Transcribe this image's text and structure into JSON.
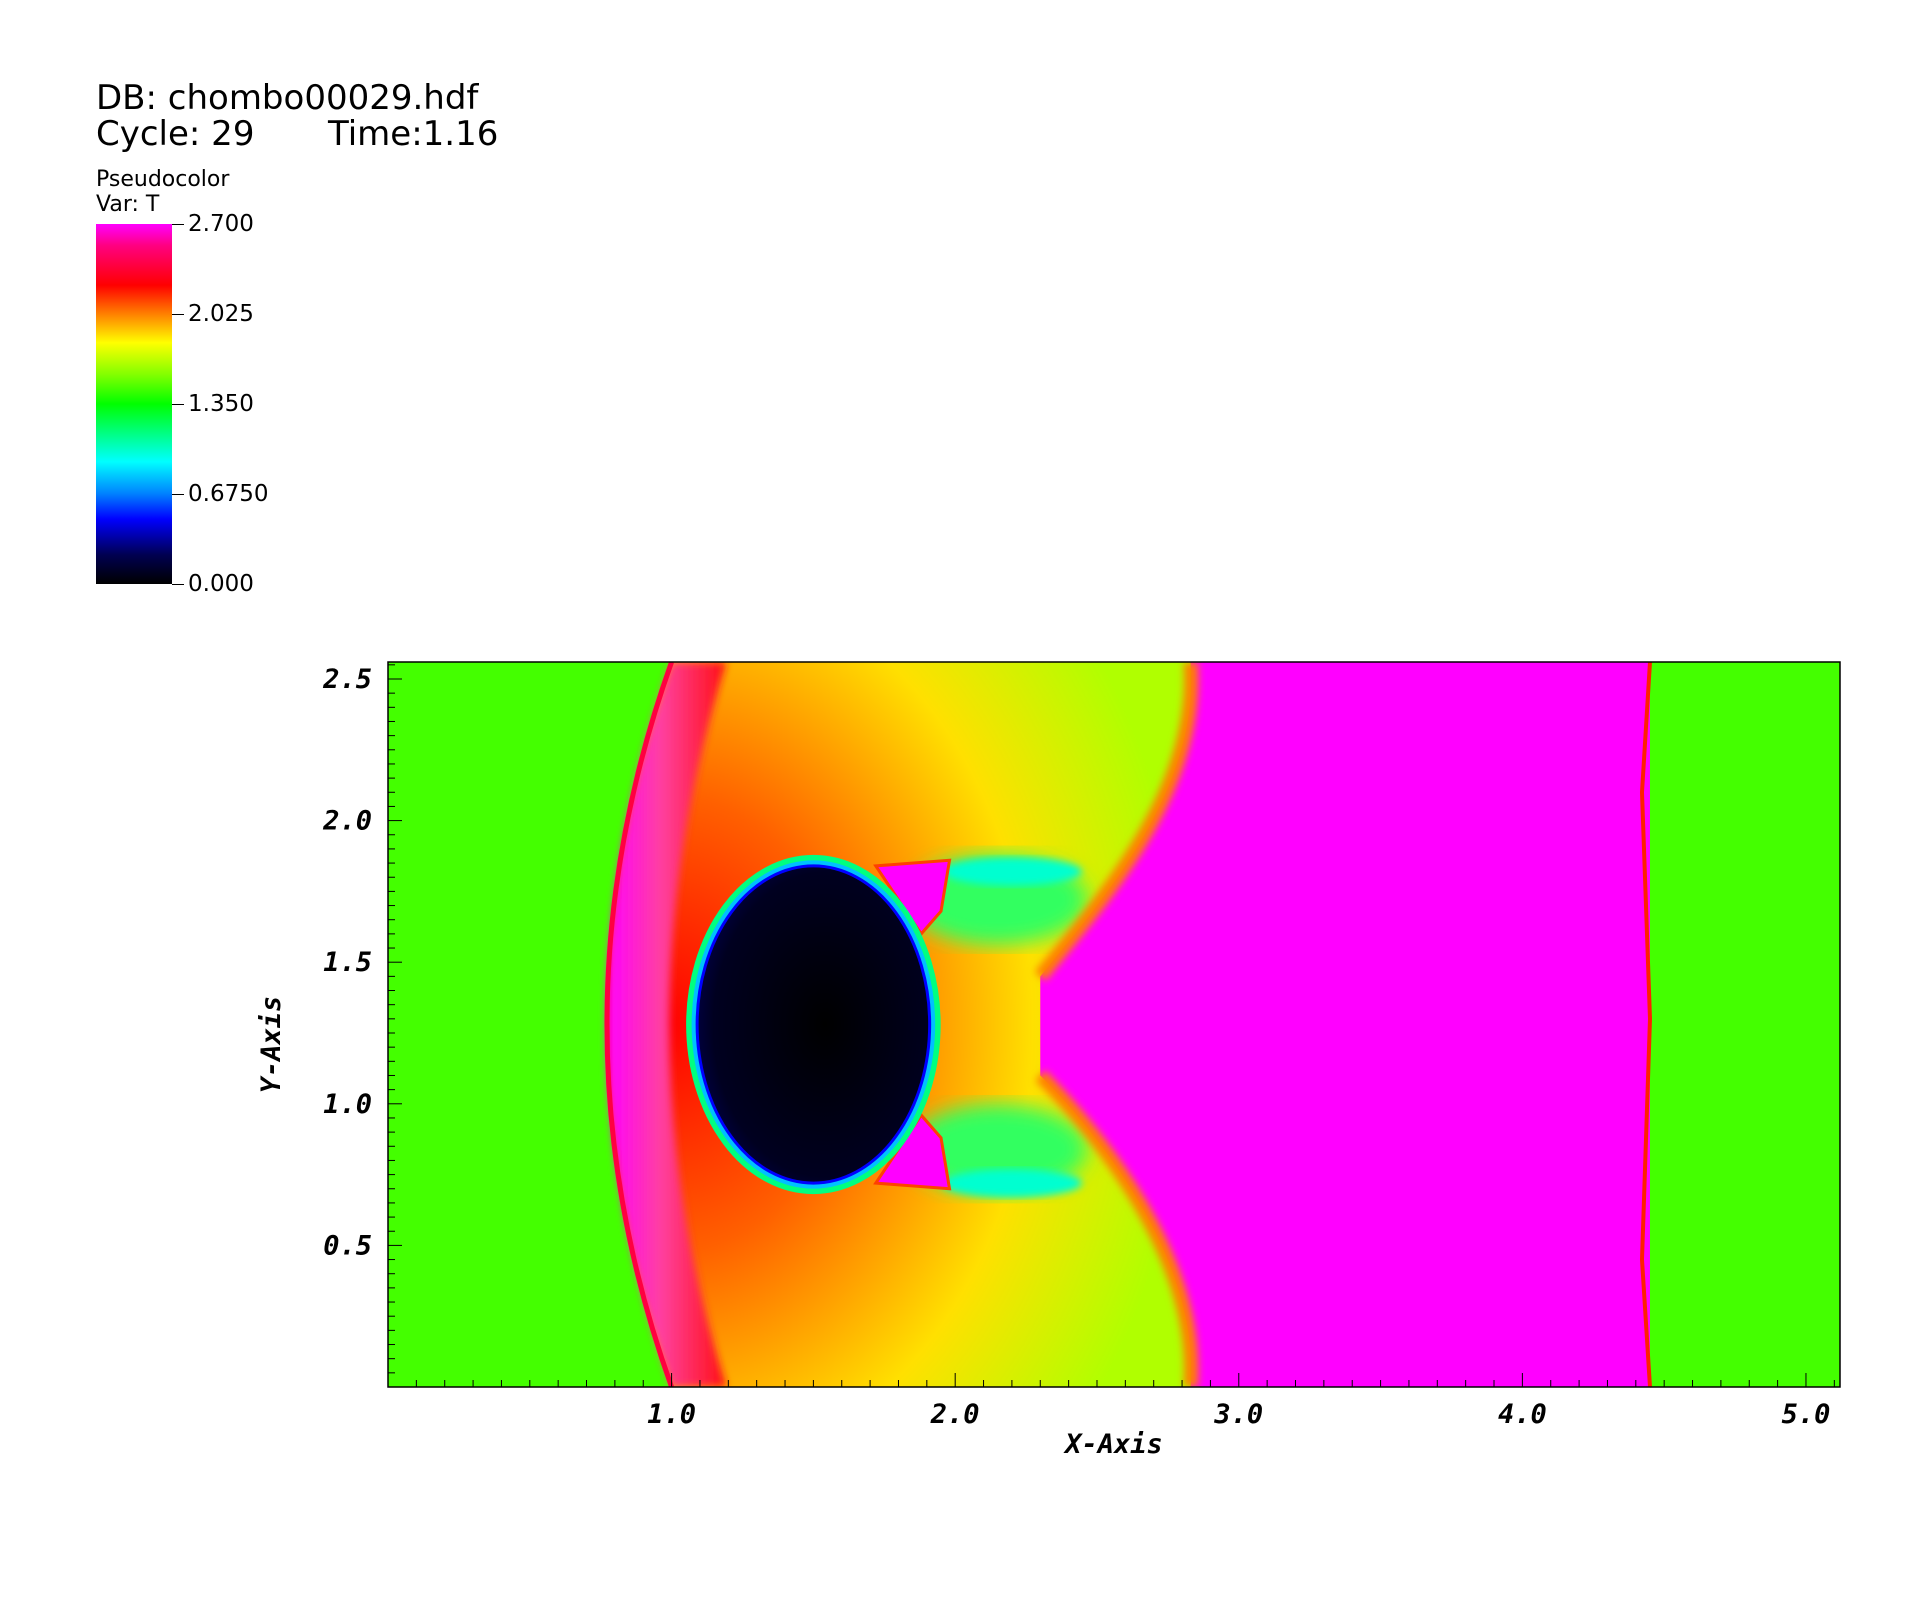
{
  "header": {
    "db_line": "DB: chombo00029.hdf",
    "cycle_line": "Cycle: 29",
    "time_line": "Time:1.16"
  },
  "legend": {
    "plot_type": "Pseudocolor",
    "var_label": "Var: T",
    "ticks": [
      "2.700",
      "2.025",
      "1.350",
      "0.6750",
      "0.000"
    ]
  },
  "chart_data": {
    "type": "heatmap",
    "variable": "T",
    "value_range": [
      0.0,
      2.7
    ],
    "colormap": "hot-desaturated rainbow (black-blue-cyan-green-yellow-red-magenta)",
    "xlabel": "X-Axis",
    "ylabel": "Y-Axis",
    "xlim": [
      0.0,
      5.12
    ],
    "ylim": [
      0.0,
      2.56
    ],
    "x_ticks": [
      "1.0",
      "2.0",
      "3.0",
      "4.0",
      "5.0"
    ],
    "y_ticks": [
      "0.5",
      "1.0",
      "1.5",
      "2.0",
      "2.5"
    ],
    "regions": {
      "ambient_T": 1.35,
      "bow_shock_apex_x": 0.65,
      "bow_shock_edge_x": 1.0,
      "cold_bubble_center": [
        1.5,
        1.28
      ],
      "cold_bubble_radius": 0.6,
      "cold_bubble_T": 0.0,
      "hot_slab_x": [
        2.83,
        4.45
      ],
      "hot_slab_T": 2.7
    }
  }
}
